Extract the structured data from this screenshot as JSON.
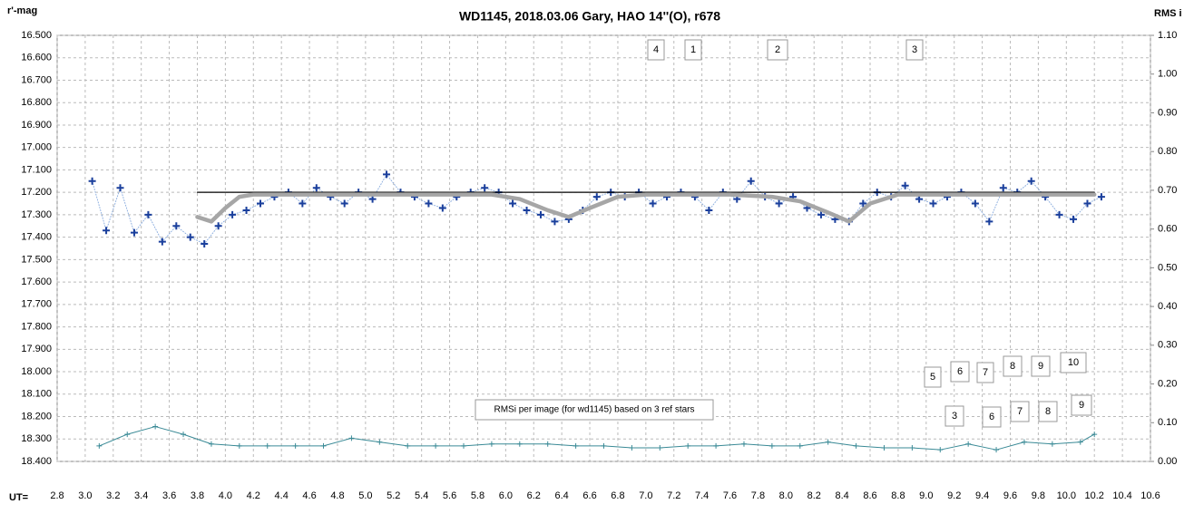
{
  "chart_data": {
    "type": "scatter",
    "title": "WD1145, 2018.03.06  Gary, HAO  14''(O), r678",
    "y_label": "r'-mag",
    "y2_label": "RMS i",
    "x_label": "UT=",
    "xlim": [
      2.8,
      10.6
    ],
    "xticks": [
      2.8,
      {
        "value": 3,
        "label": "3.0"
      },
      3.2,
      3.4,
      3.6,
      3.8,
      {
        "value": 4,
        "label": "4.0"
      },
      4.2,
      4.4,
      4.6,
      4.8,
      {
        "value": 5,
        "label": "5.0"
      },
      5.2,
      5.4,
      5.6,
      5.8,
      {
        "value": 6,
        "label": "6.0"
      },
      6.2,
      6.4,
      6.6,
      6.8,
      {
        "value": 7,
        "label": "7.0"
      },
      7.2,
      7.4,
      7.6,
      7.8,
      {
        "value": 8,
        "label": "8.0"
      },
      8.2,
      8.4,
      8.6,
      8.8,
      {
        "value": 9,
        "label": "9.0"
      },
      9.2,
      9.4,
      9.6,
      9.8,
      {
        "value": 10,
        "label": "10.0"
      },
      10.2,
      10.4,
      10.6
    ],
    "ylim": [
      16.5,
      18.4
    ],
    "y_inverted": true,
    "yticks": [
      {
        "value": 16.5,
        "label": "16.500"
      },
      {
        "value": 16.6,
        "label": "16.600"
      },
      {
        "value": 16.7,
        "label": "16.700"
      },
      {
        "value": 16.8,
        "label": "16.800"
      },
      {
        "value": 16.9,
        "label": "16.900"
      },
      {
        "value": 17.0,
        "label": "17.000"
      },
      {
        "value": 17.1,
        "label": "17.100"
      },
      {
        "value": 17.2,
        "label": "17.200"
      },
      {
        "value": 17.3,
        "label": "17.300"
      },
      {
        "value": 17.4,
        "label": "17.400"
      },
      {
        "value": 17.5,
        "label": "17.500"
      },
      {
        "value": 17.6,
        "label": "17.600"
      },
      {
        "value": 17.7,
        "label": "17.700"
      },
      {
        "value": 17.8,
        "label": "17.800"
      },
      {
        "value": 17.9,
        "label": "17.900"
      },
      {
        "value": 18.0,
        "label": "18.000"
      },
      {
        "value": 18.1,
        "label": "18.100"
      },
      {
        "value": 18.2,
        "label": "18.200"
      },
      {
        "value": 18.3,
        "label": "18.300"
      },
      {
        "value": 18.4,
        "label": "18.400"
      }
    ],
    "y2lim": [
      0,
      1.1
    ],
    "y2ticks": [
      {
        "value": 0,
        "label": "0.00"
      },
      {
        "value": 0.1,
        "label": "0.10"
      },
      {
        "value": 0.2,
        "label": "0.20"
      },
      {
        "value": 0.3,
        "label": "0.30"
      },
      {
        "value": 0.4,
        "label": "0.40"
      },
      {
        "value": 0.5,
        "label": "0.50"
      },
      {
        "value": 0.6,
        "label": "0.60"
      },
      {
        "value": 0.7,
        "label": "0.70"
      },
      {
        "value": 0.8,
        "label": "0.80"
      },
      {
        "value": 0.9,
        "label": "0.90"
      },
      {
        "value": 1.0,
        "label": "1.00"
      },
      {
        "value": 1.1,
        "label": "1.10"
      }
    ],
    "grid": true,
    "series": [
      {
        "color": "#1a3f9c",
        "marker": "+",
        "line": "dotted",
        "x": [
          3.05,
          3.15,
          3.25,
          3.35,
          3.45,
          3.55,
          3.65,
          3.75,
          3.85,
          3.95,
          4.05,
          4.15,
          4.25,
          4.35,
          4.45,
          4.55,
          4.65,
          4.75,
          4.85,
          4.95,
          5.05,
          5.15,
          5.25,
          5.35,
          5.45,
          5.55,
          5.65,
          5.75,
          5.85,
          5.95,
          6.05,
          6.15,
          6.25,
          6.35,
          6.45,
          6.55,
          6.65,
          6.75,
          6.85,
          6.95,
          7.05,
          7.15,
          7.25,
          7.35,
          7.45,
          7.55,
          7.65,
          7.75,
          7.85,
          7.95,
          8.05,
          8.15,
          8.25,
          8.35,
          8.45,
          8.55,
          8.65,
          8.75,
          8.85,
          8.95,
          9.05,
          9.15,
          9.25,
          9.35,
          9.45,
          9.55,
          9.65,
          9.75,
          9.85,
          9.95,
          10.05,
          10.15,
          10.25
        ],
        "values": [
          17.15,
          17.37,
          17.18,
          17.38,
          17.3,
          17.42,
          17.35,
          17.4,
          17.43,
          17.35,
          17.3,
          17.28,
          17.25,
          17.22,
          17.2,
          17.25,
          17.18,
          17.22,
          17.25,
          17.2,
          17.23,
          17.12,
          17.2,
          17.22,
          17.25,
          17.27,
          17.22,
          17.2,
          17.18,
          17.2,
          17.25,
          17.28,
          17.3,
          17.33,
          17.32,
          17.28,
          17.22,
          17.2,
          17.22,
          17.2,
          17.25,
          17.22,
          17.2,
          17.22,
          17.28,
          17.2,
          17.23,
          17.15,
          17.22,
          17.25,
          17.22,
          17.27,
          17.3,
          17.32,
          17.33,
          17.25,
          17.2,
          17.22,
          17.17,
          17.23,
          17.25,
          17.22,
          17.2,
          17.25,
          17.33,
          17.18,
          17.2,
          17.15,
          17.22,
          17.3,
          17.32,
          17.25,
          17.22
        ]
      },
      {
        "color": "#000000",
        "marker": "none",
        "line": "solid",
        "x": [
          3.8,
          10.2
        ],
        "values": [
          17.2,
          17.2
        ]
      },
      {
        "color": "#a6a6a6",
        "marker": "none",
        "line": "thick",
        "x": [
          3.8,
          3.9,
          4.0,
          4.1,
          4.2,
          4.4,
          5.6,
          5.9,
          6.1,
          6.3,
          6.45,
          6.6,
          6.8,
          7.0,
          7.6,
          7.9,
          8.1,
          8.3,
          8.45,
          8.6,
          8.8,
          10.2
        ],
        "values": [
          17.31,
          17.33,
          17.27,
          17.22,
          17.21,
          17.21,
          17.21,
          17.21,
          17.23,
          17.28,
          17.31,
          17.27,
          17.22,
          17.21,
          17.21,
          17.22,
          17.24,
          17.29,
          17.33,
          17.25,
          17.21,
          17.21
        ]
      },
      {
        "color": "#3a8a96",
        "marker": "+",
        "line": "solid",
        "axis": "y2",
        "x": [
          3.1,
          3.3,
          3.5,
          3.7,
          3.9,
          4.1,
          4.3,
          4.5,
          4.7,
          4.9,
          5.1,
          5.3,
          5.5,
          5.7,
          5.9,
          6.1,
          6.3,
          6.5,
          6.7,
          6.9,
          7.1,
          7.3,
          7.5,
          7.7,
          7.9,
          8.1,
          8.3,
          8.5,
          8.7,
          8.9,
          9.1,
          9.3,
          9.5,
          9.7,
          9.9,
          10.1,
          10.2
        ],
        "values": [
          0.04,
          0.07,
          0.09,
          0.07,
          0.045,
          0.04,
          0.04,
          0.04,
          0.04,
          0.06,
          0.05,
          0.04,
          0.04,
          0.04,
          0.045,
          0.045,
          0.045,
          0.04,
          0.04,
          0.035,
          0.035,
          0.04,
          0.04,
          0.045,
          0.04,
          0.04,
          0.05,
          0.04,
          0.035,
          0.035,
          0.03,
          0.045,
          0.03,
          0.05,
          0.045,
          0.05,
          0.07
        ]
      }
    ],
    "annotations": [
      "4",
      "1",
      "2",
      "3",
      "5",
      "6",
      "7",
      "8",
      "9",
      "10",
      "3",
      "6",
      "7",
      "8",
      "9",
      "RMSi per image (for wd1145) based on 3 ref stars"
    ]
  }
}
